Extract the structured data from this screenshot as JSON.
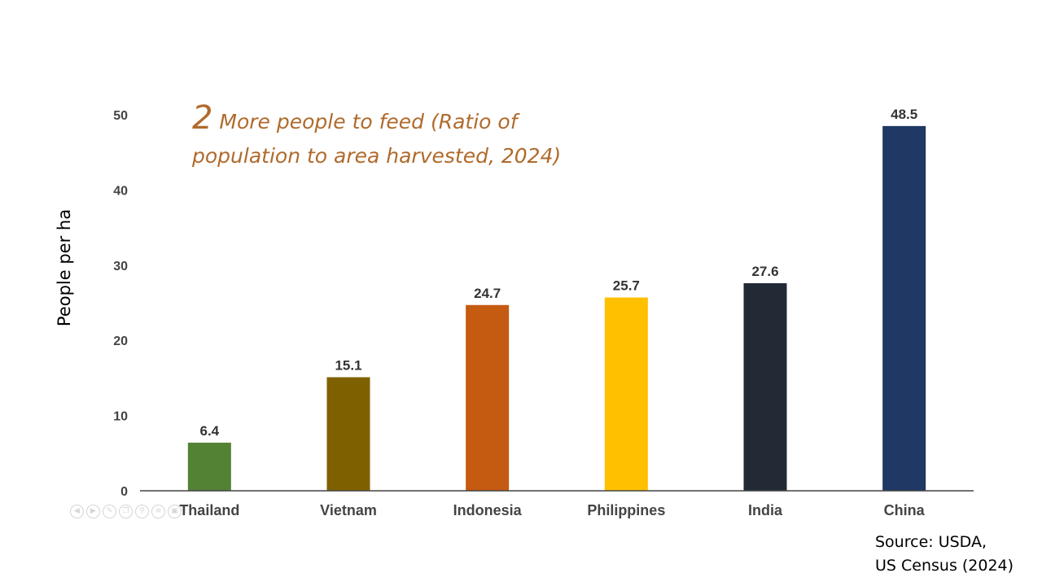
{
  "title": {
    "number": "2",
    "text": "More people to feed (Ratio of population to area harvested, 2024)"
  },
  "source": {
    "line1": "Source: USDA,",
    "line2": "US Census (2024)"
  },
  "chart_data": {
    "type": "bar",
    "title": "2 More people to feed (Ratio of population to area harvested, 2024)",
    "xlabel": "",
    "ylabel": "People per ha",
    "ylim": [
      0,
      50
    ],
    "yticks": [
      0,
      10,
      20,
      30,
      40,
      50
    ],
    "grid": false,
    "categories": [
      "Thailand",
      "Vietnam",
      "Indonesia",
      "Philippines",
      "India",
      "China"
    ],
    "values": [
      6.4,
      15.1,
      24.7,
      25.7,
      27.6,
      48.5
    ],
    "value_labels": [
      "6.4",
      "15.1",
      "24.7",
      "25.7",
      "27.6",
      "48.5"
    ],
    "colors": [
      "#548235",
      "#7f6000",
      "#c55a11",
      "#ffc000",
      "#222a35",
      "#1f3864"
    ]
  },
  "toolbar": {
    "icons": [
      "prev-icon",
      "next-icon",
      "pen-icon",
      "copy-icon",
      "zoom-icon",
      "menu-icon",
      "camera-icon"
    ]
  }
}
